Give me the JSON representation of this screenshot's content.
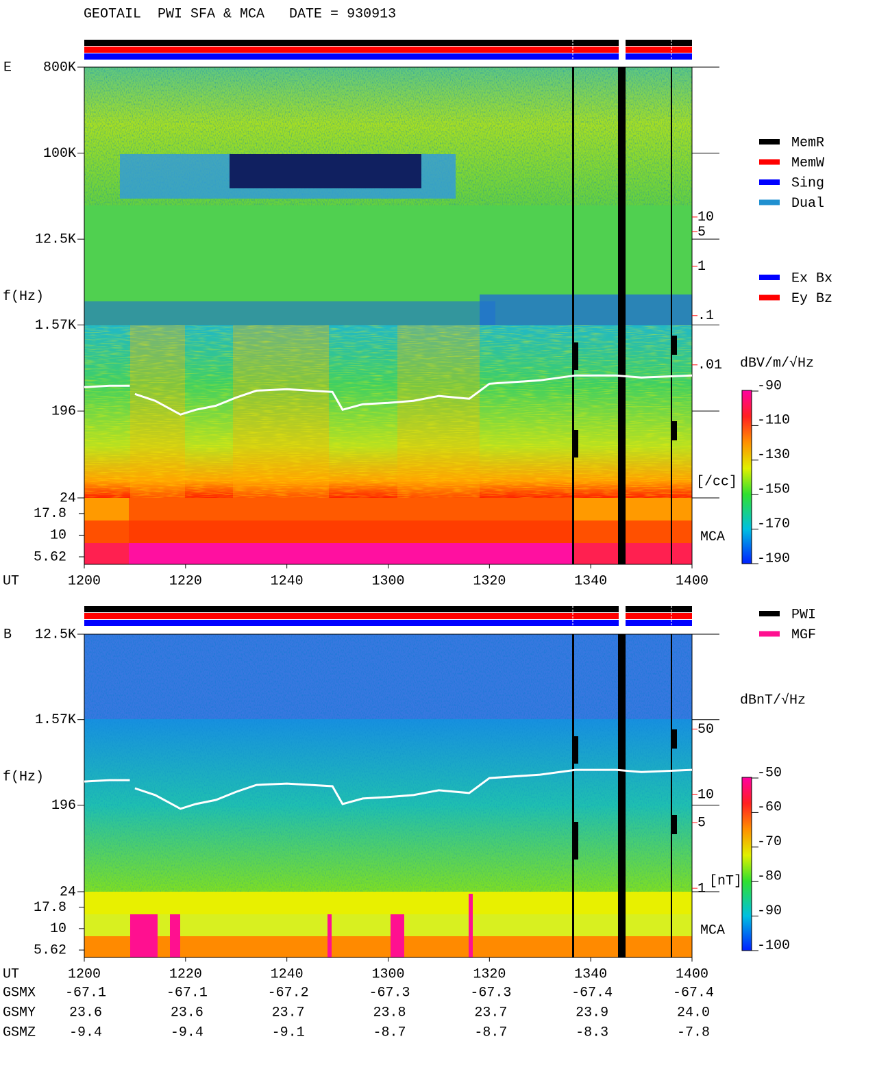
{
  "chart_data": [
    {
      "type": "spectrogram",
      "title": "GEOTAIL  PWI SFA & MCA   DATE = 930913",
      "panel": "E",
      "y_label": "f(Hz)",
      "x_label": "UT",
      "log_y": true,
      "ylim": [
        24,
        800000
      ],
      "yticks": [
        {
          "value": 800000,
          "label": "800K"
        },
        {
          "value": 100000,
          "label": "100K"
        },
        {
          "value": 12500,
          "label": "12.5K"
        },
        {
          "value": 1570,
          "label": "1.57K"
        },
        196,
        24
      ],
      "mca_label": "MCA",
      "mca_ylim": [
        4.6,
        27
      ],
      "mca_yticks": [
        17.8,
        10,
        5.62
      ],
      "xlim": [
        720,
        840
      ],
      "xticks": [
        {
          "value": 720,
          "label": "1200"
        },
        {
          "value": 740,
          "label": "1220"
        },
        {
          "value": 760,
          "label": "1240"
        },
        {
          "value": 780,
          "label": "1300"
        },
        {
          "value": 800,
          "label": "1320"
        },
        {
          "value": 820,
          "label": "1340"
        },
        {
          "value": 840,
          "label": "1400"
        }
      ],
      "y2_label": "[/cc]",
      "y2_color": "#ff0000",
      "y2lim": [
        2e-05,
        11000
      ],
      "y2ticks": [
        10,
        5,
        1,
        {
          "value": 0.1,
          "label": ".1"
        },
        {
          "value": 0.01,
          "label": ".01"
        }
      ],
      "colorbar": {
        "label": "dBV/m/√Hz",
        "lim": [
          -190,
          -90
        ],
        "ticks": [
          -90,
          -110,
          -130,
          -150,
          -170,
          -190
        ]
      },
      "legend": [
        {
          "name": "MemR",
          "color": "#000000"
        },
        {
          "name": "MemW",
          "color": "#ff0000"
        },
        {
          "name": "Sing",
          "color": "#0000ff"
        },
        {
          "name": "Dual",
          "color": "#2090d0"
        }
      ],
      "legend_antenna": [
        {
          "name": "Ex Bx",
          "color": "#0000ff"
        },
        {
          "name": "Ey Bz",
          "color": "#ff0000"
        }
      ],
      "series": [
        {
          "color": "#ffffff",
          "x": [
            720,
            725,
            729,
            729.5,
            730,
            734,
            739,
            742,
            746,
            750,
            754,
            760,
            769,
            771,
            775,
            780,
            785,
            790,
            796,
            800,
            810,
            817,
            825,
            830,
            840
          ],
          "values": [
            349,
            361,
            361,
            null,
            296,
            251,
            180,
            202,
            223,
            272,
            321,
            332,
            311,
            202,
            231,
            239,
            251,
            282,
            264,
            379,
            412,
            463,
            463,
            440,
            463
          ]
        }
      ]
    },
    {
      "type": "spectrogram",
      "panel": "B",
      "y_label": "f(Hz)",
      "x_label": "UT",
      "log_y": true,
      "ylim": [
        24,
        12500
      ],
      "yticks": [
        {
          "value": 12500,
          "label": "12.5K"
        },
        {
          "value": 1570,
          "label": "1.57K"
        },
        196,
        24
      ],
      "mca_label": "MCA",
      "mca_ylim": [
        4.6,
        27
      ],
      "mca_yticks": [
        17.8,
        10,
        5.62
      ],
      "xlim": [
        720,
        840
      ],
      "xticks": [
        {
          "value": 720,
          "label": "1200"
        },
        {
          "value": 740,
          "label": "1220"
        },
        {
          "value": 760,
          "label": "1240"
        },
        {
          "value": 780,
          "label": "1300"
        },
        {
          "value": 800,
          "label": "1320"
        },
        {
          "value": 820,
          "label": "1340"
        },
        {
          "value": 840,
          "label": "1400"
        }
      ],
      "y2_label": "[nT]",
      "y2_color": "#ff0000",
      "y2lim": [
        0.92,
        515
      ],
      "y2ticks": [
        50,
        10,
        5,
        1
      ],
      "colorbar": {
        "label": "dBnT/√Hz",
        "lim": [
          -100,
          -50
        ],
        "ticks": [
          -50,
          -60,
          -70,
          -80,
          -90,
          -100
        ]
      },
      "legend": [
        {
          "name": "PWI",
          "color": "#000000"
        },
        {
          "name": "MGF",
          "color": "#ff1090"
        }
      ],
      "series": [
        {
          "color": "#ffffff",
          "x": [
            720,
            725,
            729,
            729.5,
            730,
            734,
            739,
            742,
            746,
            750,
            754,
            760,
            769,
            771,
            775,
            780,
            785,
            790,
            796,
            800,
            810,
            817,
            825,
            830,
            840
          ],
          "values": [
            349,
            361,
            361,
            null,
            296,
            251,
            180,
            202,
            223,
            272,
            321,
            332,
            311,
            202,
            231,
            239,
            251,
            282,
            264,
            379,
            412,
            463,
            463,
            440,
            463
          ]
        }
      ],
      "orbit": [
        {
          "name": "GSMX",
          "values": [
            "-67.1",
            "-67.1",
            "-67.2",
            "-67.3",
            "-67.3",
            "-67.4",
            "-67.4"
          ]
        },
        {
          "name": "GSMY",
          "values": [
            "23.6",
            "23.6",
            "23.7",
            "23.8",
            "23.7",
            "23.9",
            "24.0"
          ]
        },
        {
          "name": "GSMZ",
          "values": [
            "-9.4",
            "-9.4",
            "-9.1",
            "-8.7",
            "-8.7",
            "-8.3",
            "-7.8"
          ]
        }
      ]
    }
  ]
}
